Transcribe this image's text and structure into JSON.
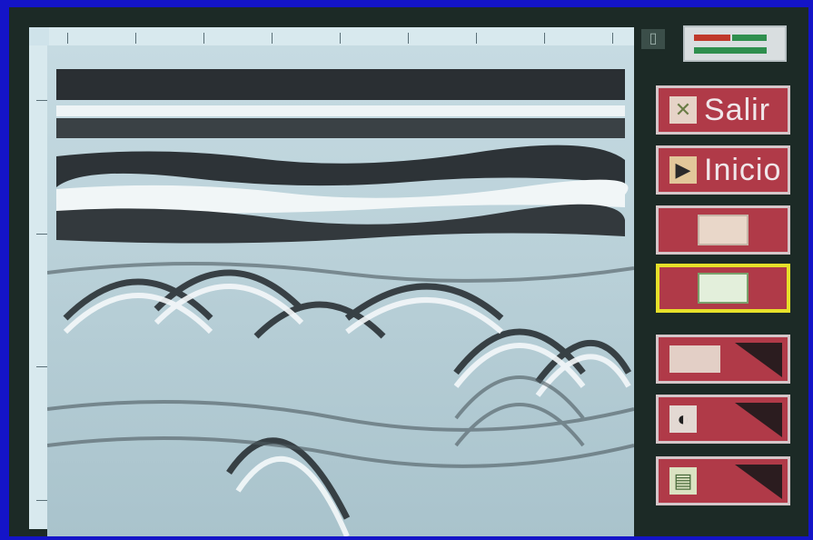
{
  "screen": {
    "colors": {
      "bezel": "#1414c8",
      "panel": "#1c2a26",
      "button": "#b03a48",
      "selected_border": "#e6e02a"
    }
  },
  "radargram": {
    "top_scale_ticks": 9,
    "left_scale_ticks": 4
  },
  "sidebar": {
    "buttons": [
      {
        "label": "Salir",
        "icon": "close-x-icon"
      },
      {
        "label": "Inicio",
        "icon": "play-icon"
      },
      {
        "label": "",
        "icon": "tool-icon"
      },
      {
        "label": "",
        "icon": "window-icon",
        "selected": true
      },
      {
        "label": "",
        "icon": "screen-gain-icon"
      },
      {
        "label": "",
        "icon": "half-moon-icon"
      },
      {
        "label": "",
        "icon": "document-icon"
      }
    ]
  }
}
